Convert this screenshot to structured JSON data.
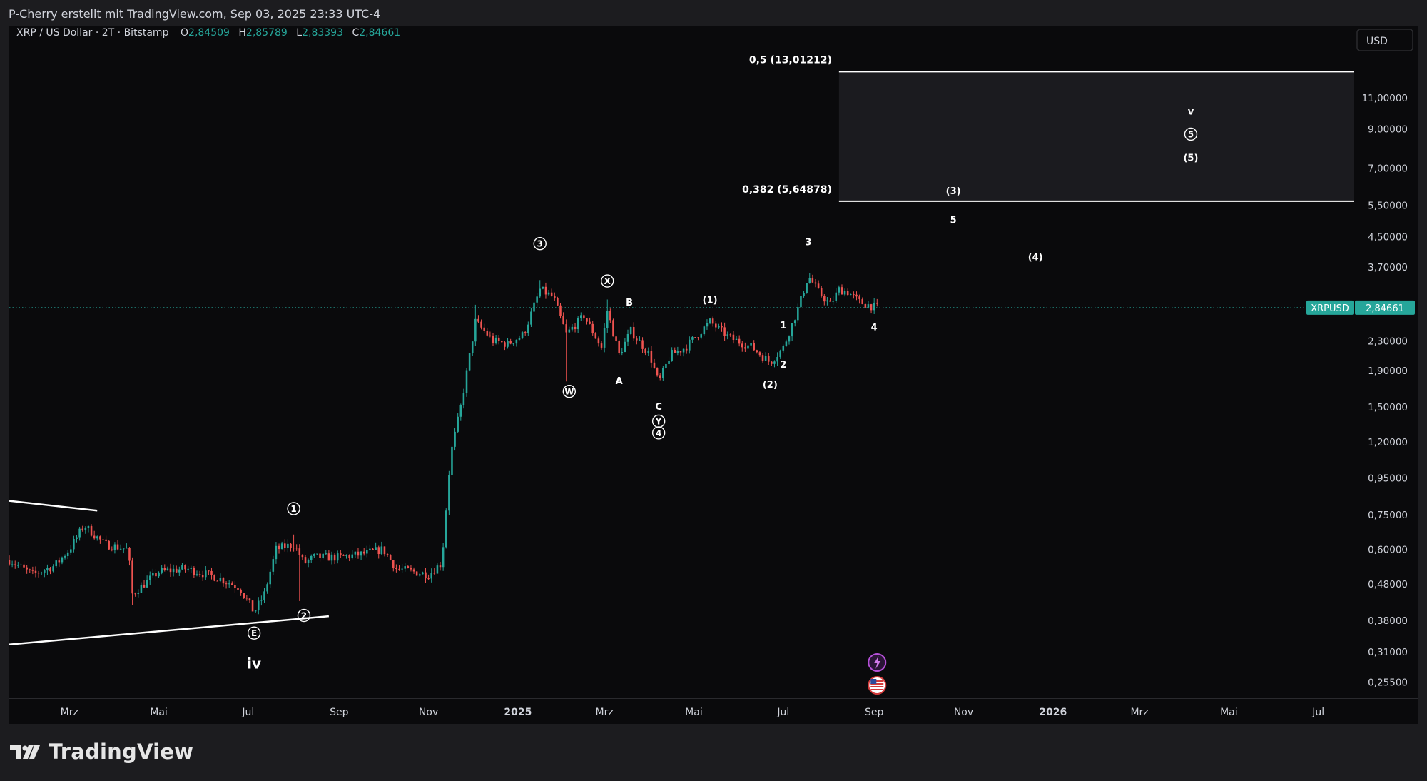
{
  "header": {
    "caption": "P-Cherry erstellt mit TradingView.com, Sep 03, 2025 23:33 UTC-4",
    "symbol_line": "XRP / US Dollar · 2T · Bitstamp",
    "ohlc": [
      {
        "k": "O",
        "v": "2,84509"
      },
      {
        "k": "H",
        "v": "2,85789"
      },
      {
        "k": "L",
        "v": "2,83393"
      },
      {
        "k": "C",
        "v": "2,84661"
      }
    ]
  },
  "currency_button": "USD",
  "footer": {
    "brand": "TradingView"
  },
  "colors": {
    "up": "#26a69a",
    "down": "#ef5350",
    "price_tag": "#26a69a",
    "background": "#0a0a0c",
    "annotation": "#ffffff"
  },
  "chart_data": {
    "type": "candlestick",
    "symbol": "XRPUSD",
    "timeframe": "2T",
    "exchange": "Bitstamp",
    "y_scale": "log",
    "ylim": [
      0.23,
      17.5
    ],
    "x_range": [
      "2024-01-20",
      "2026-07-25"
    ],
    "last_price": 2.84661,
    "last_price_label": "XRPUSD",
    "last_price_text": "2,84661",
    "y_ticks": [
      {
        "value": 11.0,
        "label": "11,00000"
      },
      {
        "value": 9.0,
        "label": "9,00000"
      },
      {
        "value": 7.0,
        "label": "7,00000"
      },
      {
        "value": 5.5,
        "label": "5,50000"
      },
      {
        "value": 4.5,
        "label": "4,50000"
      },
      {
        "value": 3.7,
        "label": "3,70000"
      },
      {
        "value": 2.3,
        "label": "2,30000"
      },
      {
        "value": 1.9,
        "label": "1,90000"
      },
      {
        "value": 1.5,
        "label": "1,50000"
      },
      {
        "value": 1.2,
        "label": "1,20000"
      },
      {
        "value": 0.95,
        "label": "0,95000"
      },
      {
        "value": 0.75,
        "label": "0,75000"
      },
      {
        "value": 0.6,
        "label": "0,60000"
      },
      {
        "value": 0.48,
        "label": "0,48000"
      },
      {
        "value": 0.38,
        "label": "0,38000"
      },
      {
        "value": 0.31,
        "label": "0,31000"
      },
      {
        "value": 0.255,
        "label": "0,25500"
      }
    ],
    "x_ticks": [
      {
        "date": "2024-03-01",
        "label": "Mrz",
        "bold": false
      },
      {
        "date": "2024-05-01",
        "label": "Mai",
        "bold": false
      },
      {
        "date": "2024-07-01",
        "label": "Jul",
        "bold": false
      },
      {
        "date": "2024-09-01",
        "label": "Sep",
        "bold": false
      },
      {
        "date": "2024-11-01",
        "label": "Nov",
        "bold": false
      },
      {
        "date": "2025-01-01",
        "label": "2025",
        "bold": true
      },
      {
        "date": "2025-03-01",
        "label": "Mrz",
        "bold": false
      },
      {
        "date": "2025-05-01",
        "label": "Mai",
        "bold": false
      },
      {
        "date": "2025-07-01",
        "label": "Jul",
        "bold": false
      },
      {
        "date": "2025-09-01",
        "label": "Sep",
        "bold": false
      },
      {
        "date": "2025-11-01",
        "label": "Nov",
        "bold": false
      },
      {
        "date": "2026-01-01",
        "label": "2026",
        "bold": true
      },
      {
        "date": "2026-03-01",
        "label": "Mrz",
        "bold": false
      },
      {
        "date": "2026-05-01",
        "label": "Mai",
        "bold": false
      },
      {
        "date": "2026-07-01",
        "label": "Jul",
        "bold": false
      }
    ],
    "price_path": [
      [
        "2024-01-20",
        0.56
      ],
      [
        "2024-02-05",
        0.51
      ],
      [
        "2024-02-20",
        0.54
      ],
      [
        "2024-03-01",
        0.6
      ],
      [
        "2024-03-11",
        0.7
      ],
      [
        "2024-03-25",
        0.62
      ],
      [
        "2024-04-10",
        0.6
      ],
      [
        "2024-04-13",
        0.45
      ],
      [
        "2024-05-01",
        0.52
      ],
      [
        "2024-05-20",
        0.53
      ],
      [
        "2024-06-10",
        0.5
      ],
      [
        "2024-06-25",
        0.47
      ],
      [
        "2024-07-05",
        0.4
      ],
      [
        "2024-07-12",
        0.45
      ],
      [
        "2024-07-20",
        0.6
      ],
      [
        "2024-08-01",
        0.62
      ],
      [
        "2024-08-08",
        0.55
      ],
      [
        "2024-08-15",
        0.57
      ],
      [
        "2024-09-01",
        0.57
      ],
      [
        "2024-09-15",
        0.58
      ],
      [
        "2024-10-01",
        0.6
      ],
      [
        "2024-10-10",
        0.53
      ],
      [
        "2024-11-01",
        0.51
      ],
      [
        "2024-11-10",
        0.55
      ],
      [
        "2024-11-16",
        1.1
      ],
      [
        "2024-11-23",
        1.5
      ],
      [
        "2024-12-03",
        2.6
      ],
      [
        "2024-12-15",
        2.3
      ],
      [
        "2024-12-25",
        2.25
      ],
      [
        "2025-01-05",
        2.4
      ],
      [
        "2025-01-16",
        3.2
      ],
      [
        "2025-01-25",
        3.05
      ],
      [
        "2025-02-03",
        2.4
      ],
      [
        "2025-02-15",
        2.7
      ],
      [
        "2025-02-27",
        2.2
      ],
      [
        "2025-03-03",
        2.8
      ],
      [
        "2025-03-11",
        2.1
      ],
      [
        "2025-03-19",
        2.45
      ],
      [
        "2025-04-01",
        2.1
      ],
      [
        "2025-04-07",
        1.75
      ],
      [
        "2025-04-15",
        2.1
      ],
      [
        "2025-04-25",
        2.2
      ],
      [
        "2025-05-12",
        2.6
      ],
      [
        "2025-05-25",
        2.35
      ],
      [
        "2025-06-10",
        2.2
      ],
      [
        "2025-06-22",
        2.0
      ],
      [
        "2025-07-01",
        2.2
      ],
      [
        "2025-07-12",
        2.9
      ],
      [
        "2025-07-18",
        3.5
      ],
      [
        "2025-07-25",
        3.15
      ],
      [
        "2025-08-02",
        2.9
      ],
      [
        "2025-08-08",
        3.2
      ],
      [
        "2025-08-14",
        3.15
      ],
      [
        "2025-08-22",
        2.95
      ],
      [
        "2025-09-03",
        2.84661
      ]
    ],
    "spikes": [
      {
        "date": "2024-03-13",
        "high": 0.74
      },
      {
        "date": "2024-04-13",
        "low": 0.42
      },
      {
        "date": "2024-07-05",
        "low": 0.385
      },
      {
        "date": "2024-08-05",
        "low": 0.43
      },
      {
        "date": "2024-08-01",
        "high": 0.66
      },
      {
        "date": "2024-12-03",
        "high": 2.9
      },
      {
        "date": "2025-01-16",
        "high": 3.4
      },
      {
        "date": "2025-02-03",
        "low": 1.77
      },
      {
        "date": "2025-03-03",
        "high": 3.0
      },
      {
        "date": "2025-04-07",
        "low": 1.61
      },
      {
        "date": "2025-06-22",
        "low": 1.92
      },
      {
        "date": "2025-07-18",
        "high": 3.65
      }
    ],
    "levels": [
      {
        "label": "0,5 (13,01212)",
        "value": 13.01212
      },
      {
        "label": "0,382 (5,64878)",
        "value": 5.64878
      }
    ],
    "target_zone": {
      "from": "2025-08-08",
      "to": "2026-07-25",
      "low": 5.64878,
      "high": 13.01212
    },
    "trend_lines": [
      {
        "from": [
          "2024-01-20",
          0.82
        ],
        "to": [
          "2024-03-20",
          0.77
        ]
      },
      {
        "from": [
          "2024-01-20",
          0.325
        ],
        "to": [
          "2024-08-25",
          0.39
        ]
      }
    ],
    "wave_labels": [
      {
        "text": "1",
        "circled": true,
        "date": "2024-08-01",
        "price": 0.78
      },
      {
        "text": "2",
        "circled": true,
        "date": "2024-08-08",
        "price": 0.392
      },
      {
        "text": "E",
        "circled": true,
        "date": "2024-07-05",
        "price": 0.35
      },
      {
        "text": "iv",
        "circled": false,
        "big": true,
        "date": "2024-07-05",
        "price": 0.285
      },
      {
        "text": "3",
        "circled": true,
        "date": "2025-01-16",
        "price": 4.3
      },
      {
        "text": "W",
        "circled": true,
        "date": "2025-02-05",
        "price": 1.66
      },
      {
        "text": "X",
        "circled": true,
        "date": "2025-03-03",
        "price": 3.38
      },
      {
        "text": "B",
        "circled": false,
        "date": "2025-03-18",
        "price": 2.95
      },
      {
        "text": "A",
        "circled": false,
        "date": "2025-03-11",
        "price": 1.78
      },
      {
        "text": "C",
        "circled": false,
        "date": "2025-04-07",
        "price": 1.51
      },
      {
        "text": "Y",
        "circled": true,
        "date": "2025-04-07",
        "price": 1.37
      },
      {
        "text": "4",
        "circled": true,
        "date": "2025-04-07",
        "price": 1.27
      },
      {
        "text": "(1)",
        "circled": false,
        "date": "2025-05-12",
        "price": 3.0
      },
      {
        "text": "1",
        "circled": false,
        "date": "2025-07-01",
        "price": 2.55
      },
      {
        "text": "2",
        "circled": false,
        "date": "2025-07-01",
        "price": 1.98
      },
      {
        "text": "(2)",
        "circled": false,
        "date": "2025-06-22",
        "price": 1.74
      },
      {
        "text": "3",
        "circled": false,
        "date": "2025-07-18",
        "price": 4.35
      },
      {
        "text": "4",
        "circled": false,
        "date": "2025-09-01",
        "price": 2.52
      },
      {
        "text": "(3)",
        "circled": false,
        "date": "2025-10-25",
        "price": 6.05
      },
      {
        "text": "5",
        "circled": false,
        "date": "2025-10-25",
        "price": 5.02
      },
      {
        "text": "(4)",
        "circled": false,
        "date": "2025-12-20",
        "price": 3.95
      },
      {
        "text": "v",
        "circled": false,
        "date": "2026-04-05",
        "price": 10.1
      },
      {
        "text": "5",
        "circled": true,
        "date": "2026-04-05",
        "price": 8.7
      },
      {
        "text": "(5)",
        "circled": false,
        "date": "2026-04-05",
        "price": 7.5
      }
    ],
    "events": [
      {
        "icon": "lightning-icon",
        "date": "2025-09-03"
      },
      {
        "icon": "us-flag-icon",
        "date": "2025-09-03"
      }
    ]
  }
}
